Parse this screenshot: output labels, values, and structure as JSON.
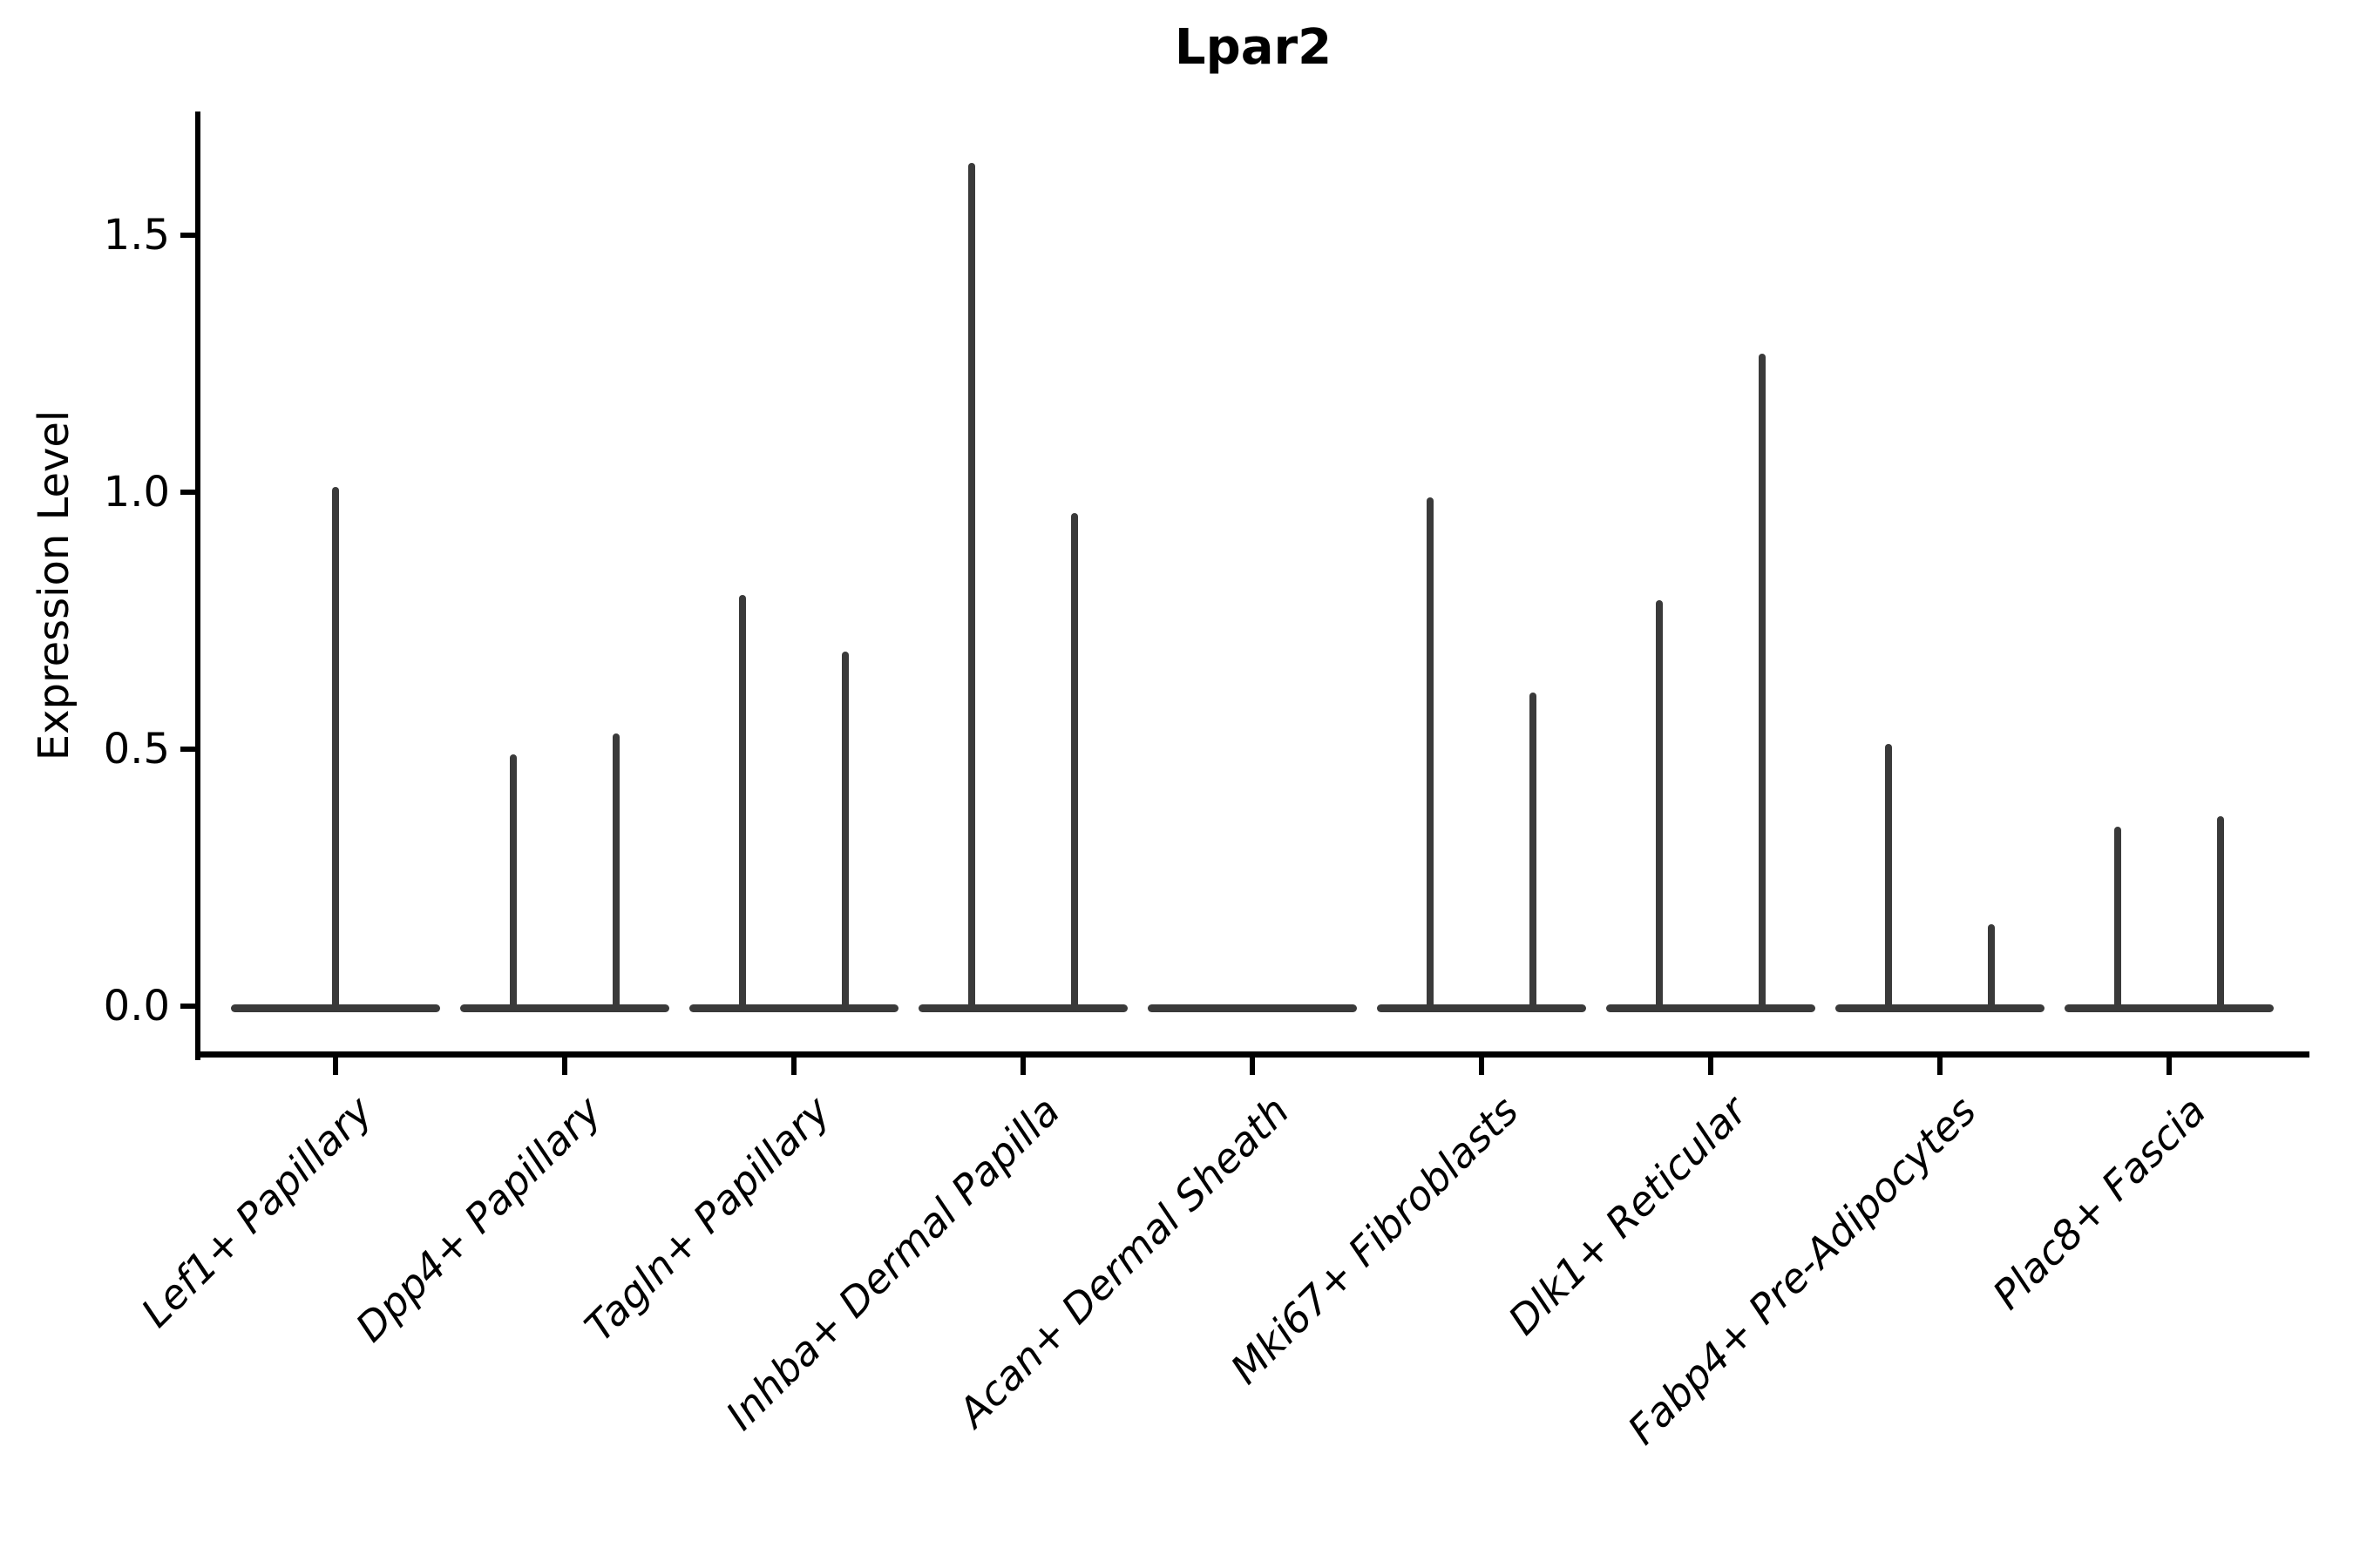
{
  "chart_data": {
    "type": "violin",
    "title": "Lpar2",
    "ylabel": "Expression Level",
    "xlabel": "",
    "ytick_labels": [
      "0.0",
      "0.5",
      "1.0",
      "1.5"
    ],
    "ytick_values": [
      0.0,
      0.5,
      1.0,
      1.5
    ],
    "ylim": [
      -0.09,
      1.74
    ],
    "grid": false,
    "legend": "none",
    "background": "#ffffff",
    "axis_color": "#000000",
    "violin_color": "#3a3a3a",
    "categories": [
      "Lef1+ Papillary",
      "Dpp4+ Papillary",
      "Tagln+ Papillary",
      "Inhba+ Dermal Papilla",
      "Acan+ Dermal Sheath",
      "Mki67+ Fibroblasts",
      "Dlk1+ Reticular",
      "Fabp4+ Pre-Adipocytes",
      "Plac8+ Fascia"
    ],
    "violins": [
      {
        "label": "Lef1+ Papillary",
        "spike_values": [
          1.01
        ]
      },
      {
        "label": "Dpp4+ Papillary",
        "spike_values": [
          0.49,
          0.53
        ]
      },
      {
        "label": "Tagln+ Papillary",
        "spike_values": [
          0.8,
          0.69
        ]
      },
      {
        "label": "Inhba+ Dermal Papilla",
        "spike_values": [
          1.64,
          0.96
        ]
      },
      {
        "label": "Acan+ Dermal Sheath",
        "spike_values": []
      },
      {
        "label": "Mki67+ Fibroblasts",
        "spike_values": [
          0.99,
          0.61
        ]
      },
      {
        "label": "Dlk1+ Reticular",
        "spike_values": [
          0.79,
          1.27
        ]
      },
      {
        "label": "Fabp4+ Pre-Adipocytes",
        "spike_values": [
          0.51,
          0.16
        ]
      },
      {
        "label": "Plac8+ Fascia",
        "spike_values": [
          0.35,
          0.37
        ]
      }
    ]
  }
}
